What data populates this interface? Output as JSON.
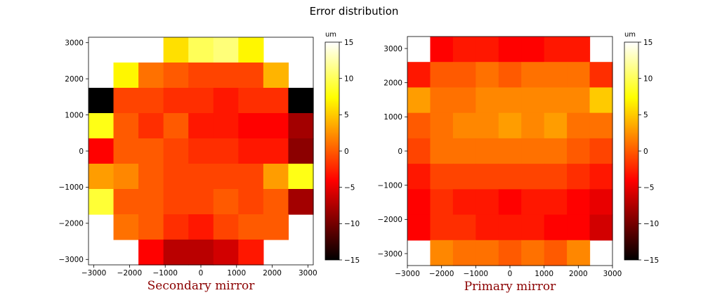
{
  "title": "Error distribution",
  "chart_data": [
    {
      "type": "heatmap",
      "label": "Secondary mirror",
      "label_color": "#8b0000",
      "xlim": [
        -3150,
        3150
      ],
      "ylim": [
        -3150,
        3150
      ],
      "xticks": [
        -3000,
        -2000,
        -1000,
        0,
        1000,
        2000,
        3000
      ],
      "yticks": [
        -3000,
        -2000,
        -1000,
        0,
        1000,
        2000,
        3000
      ],
      "xtick_labels": [
        "−3000",
        "−2000",
        "−1000",
        "0",
        "1000",
        "2000",
        "3000"
      ],
      "ytick_labels": [
        "−3000",
        "−2000",
        "−1000",
        "0",
        "1000",
        "2000",
        "3000"
      ],
      "colorbar": {
        "unit": "um",
        "min": -15,
        "max": 15,
        "ticks": [
          15,
          10,
          5,
          0,
          -5,
          -10,
          -15
        ],
        "tick_labels": [
          "15",
          "10",
          "5",
          "0",
          "−5",
          "−10",
          "−15"
        ],
        "colormap": "hot"
      },
      "grid": {
        "x_edges": [
          -3150,
          -2450,
          -1750,
          -1050,
          -350,
          350,
          1050,
          1750,
          2450,
          3150
        ],
        "y_edges": [
          3150,
          2450,
          1750,
          1050,
          350,
          -350,
          -1050,
          -1750,
          -2450,
          -3150
        ],
        "values": [
          [
            null,
            null,
            null,
            6,
            10,
            11,
            7,
            null,
            null
          ],
          [
            null,
            7,
            1,
            0,
            -1,
            -1,
            -1,
            4,
            null
          ],
          [
            -16,
            -1,
            -1,
            -2,
            -2,
            -3,
            -2,
            -2,
            -16
          ],
          [
            8,
            0,
            -2,
            0,
            -3,
            -3,
            -4,
            -4,
            -8
          ],
          [
            -4,
            0,
            0,
            -1,
            -2,
            -2,
            -3,
            -3,
            -9
          ],
          [
            3,
            2,
            0,
            -1,
            -1,
            -1,
            -1,
            3,
            8
          ],
          [
            9,
            0,
            0,
            -1,
            -1,
            0,
            -1,
            0,
            -8
          ],
          [
            null,
            1,
            0,
            -2,
            -3,
            -1,
            0,
            0,
            null
          ],
          [
            null,
            null,
            -4,
            -7,
            -7,
            -6,
            -3,
            null,
            null
          ]
        ]
      }
    },
    {
      "type": "heatmap",
      "label": "Primary mirror",
      "label_color": "#8b0000",
      "xlim": [
        -3000,
        3000
      ],
      "ylim": [
        -3350,
        3350
      ],
      "xticks": [
        -3000,
        -2000,
        -1000,
        0,
        1000,
        2000,
        3000
      ],
      "yticks": [
        -3000,
        -2000,
        -1000,
        0,
        1000,
        2000,
        3000
      ],
      "xtick_labels": [
        "−3000",
        "−2000",
        "−1000",
        "0",
        "1000",
        "2000",
        "3000"
      ],
      "ytick_labels": [
        "−3000",
        "−2000",
        "−1000",
        "0",
        "1000",
        "2000",
        "3000"
      ],
      "colorbar": {
        "unit": "um",
        "min": -15,
        "max": 15,
        "ticks": [
          15,
          10,
          5,
          0,
          -5,
          -10,
          -15
        ],
        "tick_labels": [
          "15",
          "10",
          "5",
          "0",
          "−5",
          "−10",
          "−15"
        ],
        "colormap": "hot"
      },
      "grid": {
        "x_edges": [
          -3000,
          -2333,
          -1667,
          -1000,
          -333,
          333,
          1000,
          1667,
          2333,
          3000
        ],
        "y_edges": [
          3350,
          2606,
          1861,
          1117,
          372,
          -372,
          -1117,
          -1861,
          -2606,
          -3350
        ],
        "values": [
          [
            null,
            -4,
            -3,
            -3,
            -4,
            -4,
            -3,
            -3,
            null
          ],
          [
            -3,
            0,
            0,
            1,
            0,
            1,
            1,
            1,
            -2
          ],
          [
            3,
            1,
            1,
            2,
            2,
            2,
            2,
            2,
            5
          ],
          [
            0,
            1,
            2,
            2,
            3,
            2,
            3,
            1,
            1
          ],
          [
            -1,
            1,
            1,
            1,
            1,
            1,
            1,
            0,
            -1
          ],
          [
            -3,
            -1,
            -1,
            -1,
            -1,
            -1,
            -1,
            -2,
            -3
          ],
          [
            -4,
            -2,
            -3,
            -3,
            -4,
            -3,
            -3,
            -4,
            -5
          ],
          [
            -4,
            -2,
            -2,
            -3,
            -3,
            -3,
            -4,
            -4,
            -6
          ],
          [
            null,
            2,
            1,
            1,
            0,
            1,
            0,
            2,
            null
          ]
        ]
      }
    }
  ]
}
